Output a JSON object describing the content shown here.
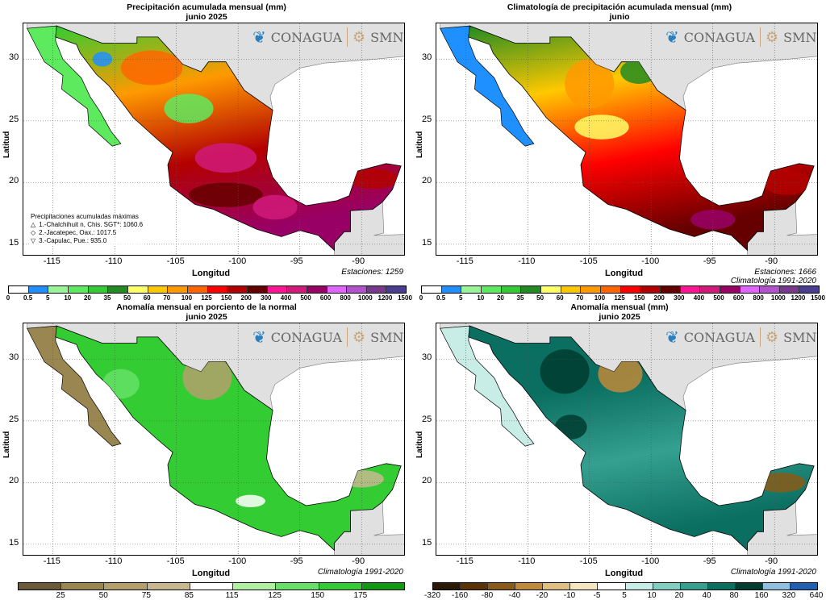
{
  "panels": [
    {
      "title": "Precipitación acumulada mensual (mm)",
      "subtitle": "junio 2025",
      "note1": "Estaciones:  1259",
      "note2": "",
      "palette": "p1"
    },
    {
      "title": "Climatología de precipitación acumulada mensual (mm)",
      "subtitle": "junio",
      "note1": "Estaciones:  1666",
      "note2": "Climatología 1991-2020",
      "palette": "p2"
    },
    {
      "title": "Anomalía mensual en porciento de la normal",
      "subtitle": "junio 2025",
      "note1": "Climatología 1991-2020",
      "note2": "",
      "palette": "p3"
    },
    {
      "title": "Anomalía mensual (mm)",
      "subtitle": "junio 2025",
      "note1": "Climatología 1991-2020",
      "note2": "",
      "palette": "p4"
    }
  ],
  "axes": {
    "xlabel": "Longitud",
    "ylabel": "Latitud",
    "lon_ticks": [
      "-115",
      "-110",
      "-105",
      "-100",
      "-95",
      "-90"
    ],
    "lat_ticks": [
      "30",
      "25",
      "20",
      "15"
    ]
  },
  "logos": {
    "conagua": "CONAGUA",
    "smn": "SMN"
  },
  "max_legend": {
    "title": "Precipitaciones acumuladas máximas",
    "items": [
      {
        "symbol": "△",
        "text": "1.-Chalchihuit n, Chis. SGT*: 1060.6"
      },
      {
        "symbol": "◇",
        "text": "2.-Jacatepec, Oax.: 1017.5"
      },
      {
        "symbol": "▽",
        "text": "3.-Capulac, Pue.: 935.0"
      }
    ]
  },
  "colorbars": {
    "precip": {
      "labels": [
        "0",
        "0.5",
        "5",
        "10",
        "20",
        "35",
        "50",
        "60",
        "70",
        "100",
        "125",
        "150",
        "200",
        "300",
        "400",
        "500",
        "600",
        "800",
        "1000",
        "1200",
        "1500"
      ],
      "colors": [
        "#ffffff",
        "#1e90ff",
        "#98f598",
        "#5eea5e",
        "#32cd32",
        "#228b22",
        "#ffff66",
        "#ffc800",
        "#ff9900",
        "#ff6600",
        "#ff0000",
        "#b30000",
        "#660000",
        "#ff1493",
        "#d11a7a",
        "#990066",
        "#e066ff",
        "#b452cd",
        "#7a3a8c",
        "#4b3d8f"
      ]
    },
    "percent": {
      "labels": [
        "25",
        "50",
        "75",
        "85",
        "115",
        "125",
        "150",
        "175"
      ],
      "colors": [
        "#6b5a3a",
        "#9a8650",
        "#b4a06c",
        "#c8b890",
        "#ffffff",
        "#b0f0a0",
        "#66e066",
        "#33cc33",
        "#119911"
      ]
    },
    "anomaly": {
      "labels": [
        "-320",
        "-160",
        "-80",
        "-40",
        "-20",
        "-10",
        "-5",
        "5",
        "10",
        "20",
        "40",
        "80",
        "160",
        "320",
        "640"
      ],
      "colors": [
        "#2a1a05",
        "#5a3408",
        "#8a5a18",
        "#c08a3a",
        "#e0c080",
        "#f5e6c0",
        "#ffffff",
        "#c8ece6",
        "#80cfc0",
        "#35a090",
        "#0a6e60",
        "#003c30",
        "#8fc0e0",
        "#2060b0"
      ]
    }
  },
  "colors": {
    "land_outside": "#e0e0e0",
    "ocean": "#ffffff"
  }
}
